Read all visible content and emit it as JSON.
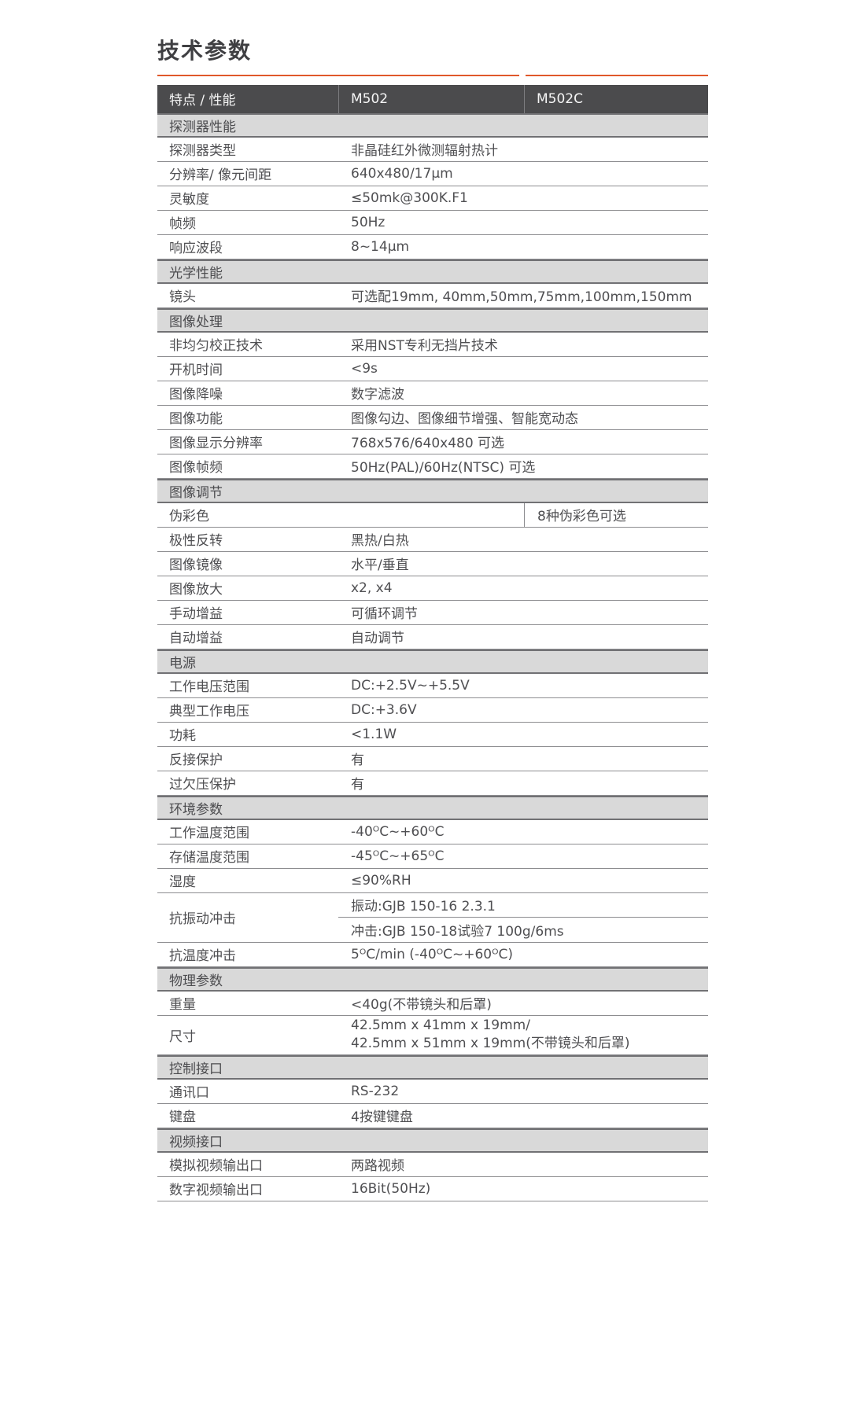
{
  "page": {
    "title": "技术参数"
  },
  "colors": {
    "accent": "#e0582b",
    "header_bg": "#4b4b4d",
    "section_bg": "#d9d9d9",
    "text": "#4f4f52"
  },
  "table": {
    "header": {
      "col1": "特点 / 性能",
      "col2": "M502",
      "col3": "M502C"
    },
    "rows": [
      {
        "type": "section",
        "label": "探测器性能"
      },
      {
        "type": "row",
        "label": "探测器类型",
        "value": "非晶硅红外微测辐射热计"
      },
      {
        "type": "row",
        "label": "分辨率/ 像元间距",
        "value": "640x480/17μm"
      },
      {
        "type": "row",
        "label": "灵敏度",
        "value": "≤50mk@300K.F1"
      },
      {
        "type": "row",
        "label": "帧频",
        "value": "50Hz"
      },
      {
        "type": "row",
        "label": "响应波段",
        "value": "8~14μm"
      },
      {
        "type": "section",
        "label": "光学性能"
      },
      {
        "type": "row",
        "label": "镜头",
        "value": "可选配19mm, 40mm,50mm,75mm,100mm,150mm"
      },
      {
        "type": "section",
        "label": "图像处理"
      },
      {
        "type": "row",
        "label": "非均匀校正技术",
        "value": "采用NST专利无挡片技术"
      },
      {
        "type": "row",
        "label": "开机时间",
        "value": "<9s"
      },
      {
        "type": "row",
        "label": "图像降噪",
        "value": "数字滤波"
      },
      {
        "type": "row",
        "label": "图像功能",
        "value": "图像勾边、图像细节增强、智能宽动态"
      },
      {
        "type": "row",
        "label": "图像显示分辨率",
        "value": "768x576/640x480 可选"
      },
      {
        "type": "row",
        "label": "图像帧频",
        "value": "50Hz(PAL)/60Hz(NTSC) 可选"
      },
      {
        "type": "section",
        "label": "图像调节"
      },
      {
        "type": "row3",
        "label": "伪彩色",
        "value_m502": "",
        "value_m502c": "8种伪彩色可选"
      },
      {
        "type": "row",
        "label": "极性反转",
        "value": "黑热/白热"
      },
      {
        "type": "row",
        "label": "图像镜像",
        "value": "水平/垂直"
      },
      {
        "type": "row",
        "label": "图像放大",
        "value": "x2, x4"
      },
      {
        "type": "row",
        "label": "手动增益",
        "value": "可循环调节"
      },
      {
        "type": "row",
        "label": "自动增益",
        "value": "自动调节"
      },
      {
        "type": "section",
        "label": "电源"
      },
      {
        "type": "row",
        "label": "工作电压范围",
        "value": "DC:+2.5V~+5.5V"
      },
      {
        "type": "row",
        "label": "典型工作电压",
        "value": "DC:+3.6V"
      },
      {
        "type": "row",
        "label": "功耗",
        "value": "<1.1W"
      },
      {
        "type": "row",
        "label": "反接保护",
        "value": "有"
      },
      {
        "type": "row",
        "label": "过欠压保护",
        "value": "有"
      },
      {
        "type": "section",
        "label": "环境参数"
      },
      {
        "type": "row",
        "label": "工作温度范围",
        "value": "-40ᴼC~+60ᴼC"
      },
      {
        "type": "row",
        "label": "存储温度范围",
        "value": "-45ᴼC~+65ᴼC"
      },
      {
        "type": "row",
        "label": "湿度",
        "value": "≤90%RH"
      },
      {
        "type": "rowspan2",
        "label": "抗振动冲击",
        "values": [
          "振动:GJB 150-16 2.3.1",
          "冲击:GJB 150-18试验7 100g/6ms"
        ]
      },
      {
        "type": "row",
        "label": "抗温度冲击",
        "value": "5ᴼC/min (-40ᴼC~+60ᴼC)"
      },
      {
        "type": "section",
        "label": "物理参数"
      },
      {
        "type": "row",
        "label": "重量",
        "value": "<40g(不带镜头和后罩)"
      },
      {
        "type": "multiline",
        "label": "尺寸",
        "lines": [
          "42.5mm x 41mm x 19mm/",
          "42.5mm x 51mm x 19mm(不带镜头和后罩)"
        ]
      },
      {
        "type": "section",
        "label": "控制接口"
      },
      {
        "type": "row",
        "label": "通讯口",
        "value": "RS-232"
      },
      {
        "type": "row",
        "label": "键盘",
        "value": "4按键键盘"
      },
      {
        "type": "section",
        "label": "视频接口"
      },
      {
        "type": "row",
        "label": "模拟视频输出口",
        "value": "两路视频"
      },
      {
        "type": "row",
        "label": "数字视频输出口",
        "value": "16Bit(50Hz)"
      }
    ]
  }
}
